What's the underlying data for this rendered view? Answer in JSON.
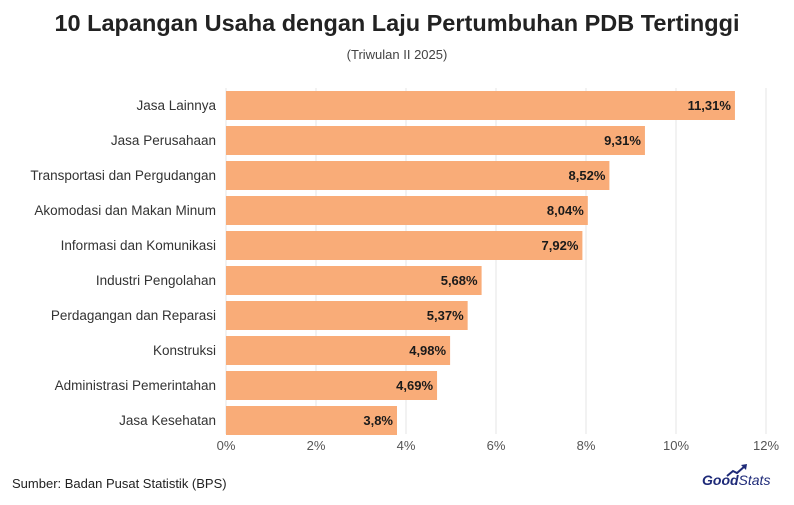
{
  "title": "10 Lapangan Usaha dengan Laju Pertumbuhan PDB Tertinggi",
  "subtitle": "(Triwulan II 2025)",
  "source": "Sumber: Badan Pusat Statistik (BPS)",
  "brand": {
    "bold": "Good",
    "light": "Stats"
  },
  "colors": {
    "bar": "#F9AC78",
    "grid": "#E6E6E6",
    "brand": "#1E2A78"
  },
  "chart_data": {
    "type": "bar",
    "orientation": "horizontal",
    "categories": [
      "Jasa Lainnya",
      "Jasa Perusahaan",
      "Transportasi dan Pergudangan",
      "Akomodasi dan Makan Minum",
      "Informasi dan Komunikasi",
      "Industri Pengolahan",
      "Perdagangan dan Reparasi",
      "Konstruksi",
      "Administrasi Pemerintahan",
      "Jasa Kesehatan"
    ],
    "values": [
      11.31,
      9.31,
      8.52,
      8.04,
      7.92,
      5.68,
      5.37,
      4.98,
      4.69,
      3.8
    ],
    "value_labels": [
      "11,31%",
      "9,31%",
      "8,52%",
      "8,04%",
      "7,92%",
      "5,68%",
      "5,37%",
      "4,98%",
      "4,69%",
      "3,8%"
    ],
    "xlim": [
      0,
      12
    ],
    "xticks": [
      0,
      2,
      4,
      6,
      8,
      10,
      12
    ],
    "xtick_labels": [
      "0%",
      "2%",
      "4%",
      "6%",
      "8%",
      "10%",
      "12%"
    ],
    "grid": true
  }
}
